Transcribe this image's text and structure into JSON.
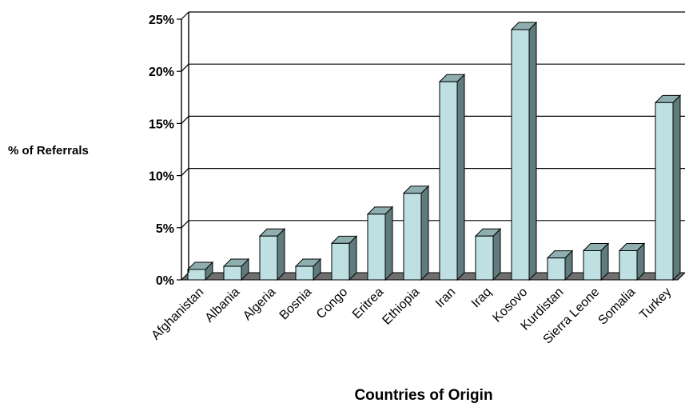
{
  "chart_data": {
    "type": "bar",
    "xlabel": "Countries of Origin",
    "ylabel": "% of Referrals",
    "categories": [
      "Afghanistan",
      "Albania",
      "Algeria",
      "Bosnia",
      "Congo",
      "Eritrea",
      "Ethiopia",
      "Iran",
      "Iraq",
      "Kosovo",
      "Kurdistan",
      "Sierra Leone",
      "Somalia",
      "Turkey"
    ],
    "values": [
      1.0,
      1.3,
      4.2,
      1.3,
      3.5,
      6.3,
      8.3,
      19.0,
      4.2,
      24.0,
      2.1,
      2.8,
      2.8,
      17.0
    ],
    "yticks": [
      "0%",
      "5%",
      "10%",
      "15%",
      "20%",
      "25%"
    ],
    "ylim": [
      0,
      25
    ],
    "grid": true,
    "style": "3d",
    "colors": {
      "bar_front": "#bfe0e2",
      "bar_side": "#5f7b7e",
      "bar_top": "#8eaeb0",
      "floor": "#6f6f6f",
      "gridline": "#000000"
    }
  }
}
